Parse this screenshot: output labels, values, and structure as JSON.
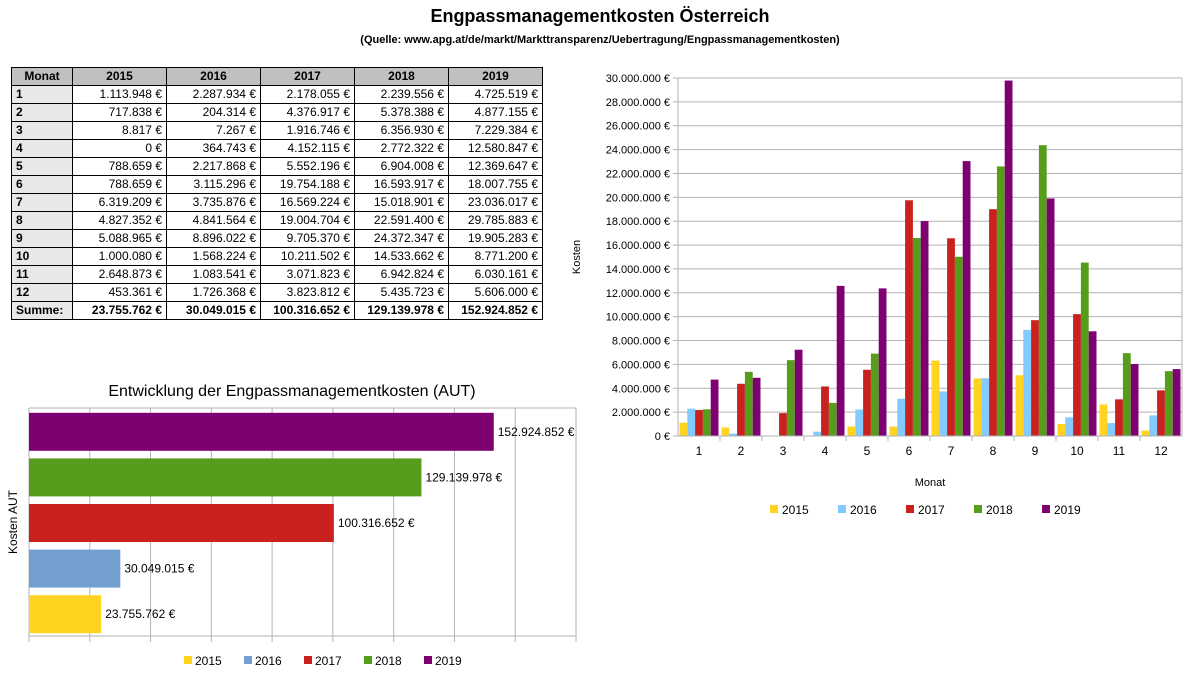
{
  "title": "Engpassmanagementkosten Österreich",
  "source": "(Quelle: www.apg.at/de/markt/Markttransparenz/Uebertragung/Engpassmanagementkosten)",
  "colors": {
    "2015": "#ffd320",
    "2016": "#83caff",
    "2017": "#c9211e",
    "2018": "#579d1c",
    "2019": "#7e0071"
  },
  "hbar_colors": [
    "#ffd320",
    "#729fcf",
    "#c9211e",
    "#579d1c",
    "#7e0071"
  ],
  "table": {
    "header": [
      "Monat",
      "2015",
      "2016",
      "2017",
      "2018",
      "2019"
    ],
    "rows": [
      [
        "1",
        "1.113.948 €",
        "2.287.934 €",
        "2.178.055 €",
        "2.239.556 €",
        "4.725.519 €"
      ],
      [
        "2",
        "717.838 €",
        "204.314 €",
        "4.376.917 €",
        "5.378.388 €",
        "4.877.155 €"
      ],
      [
        "3",
        "8.817 €",
        "7.267 €",
        "1.916.746 €",
        "6.356.930 €",
        "7.229.384 €"
      ],
      [
        "4",
        "0 €",
        "364.743 €",
        "4.152.115 €",
        "2.772.322 €",
        "12.580.847 €"
      ],
      [
        "5",
        "788.659 €",
        "2.217.868 €",
        "5.552.196 €",
        "6.904.008 €",
        "12.369.647 €"
      ],
      [
        "6",
        "788.659 €",
        "3.115.296 €",
        "19.754.188 €",
        "16.593.917 €",
        "18.007.755 €"
      ],
      [
        "7",
        "6.319.209 €",
        "3.735.876 €",
        "16.569.224 €",
        "15.018.901 €",
        "23.036.017 €"
      ],
      [
        "8",
        "4.827.352 €",
        "4.841.564 €",
        "19.004.704 €",
        "22.591.400 €",
        "29.785.883 €"
      ],
      [
        "9",
        "5.088.965 €",
        "8.896.022 €",
        "9.705.370 €",
        "24.372.347 €",
        "19.905.283 €"
      ],
      [
        "10",
        "1.000.080 €",
        "1.568.224 €",
        "10.211.502 €",
        "14.533.662 €",
        "8.771.200 €"
      ],
      [
        "11",
        "2.648.873 €",
        "1.083.541 €",
        "3.071.823 €",
        "6.942.824 €",
        "6.030.161 €"
      ],
      [
        "12",
        "453.361 €",
        "1.726.368 €",
        "3.823.812 €",
        "5.435.723 €",
        "5.606.000 €"
      ]
    ],
    "sum_row": [
      "Summe:",
      "23.755.762 €",
      "30.049.015 €",
      "100.316.652 €",
      "129.139.978 €",
      "152.924.852 €"
    ]
  },
  "chart_data": [
    {
      "type": "bar",
      "categories": [
        "1",
        "2",
        "3",
        "4",
        "5",
        "6",
        "7",
        "8",
        "9",
        "10",
        "11",
        "12"
      ],
      "series": [
        {
          "name": "2015",
          "values": [
            1113948,
            717838,
            8817,
            0,
            788659,
            788659,
            6319209,
            4827352,
            5088965,
            1000080,
            2648873,
            453361
          ]
        },
        {
          "name": "2016",
          "values": [
            2287934,
            204314,
            7267,
            364743,
            2217868,
            3115296,
            3735876,
            4841564,
            8896022,
            1568224,
            1083541,
            1726368
          ]
        },
        {
          "name": "2017",
          "values": [
            2178055,
            4376917,
            1916746,
            4152115,
            5552196,
            19754188,
            16569224,
            19004704,
            9705370,
            10211502,
            3071823,
            3823812
          ]
        },
        {
          "name": "2018",
          "values": [
            2239556,
            5378388,
            6356930,
            2772322,
            6904008,
            16593917,
            15018901,
            22591400,
            24372347,
            14533662,
            6942824,
            5435723
          ]
        },
        {
          "name": "2019",
          "values": [
            4725519,
            4877155,
            7229384,
            12580847,
            12369647,
            18007755,
            23036017,
            29785883,
            19905283,
            8771200,
            6030161,
            5606000
          ]
        }
      ],
      "xlabel": "Monat",
      "ylabel": "Kosten",
      "ylim": [
        0,
        30000000
      ],
      "ytick_step": 2000000,
      "yticks": [
        "0 €",
        "2.000.000 €",
        "4.000.000 €",
        "6.000.000 €",
        "8.000.000 €",
        "10.000.000 €",
        "12.000.000 €",
        "14.000.000 €",
        "16.000.000 €",
        "18.000.000 €",
        "20.000.000 €",
        "22.000.000 €",
        "24.000.000 €",
        "26.000.000 €",
        "28.000.000 €",
        "30.000.000 €"
      ],
      "grid": true,
      "legend": "bottom"
    },
    {
      "type": "bar",
      "orientation": "horizontal",
      "title": "Entwicklung der Engpassmanagementkosten (AUT)",
      "ylabel": "Kosten AUT",
      "series": [
        {
          "name": "2015",
          "value": 23755762,
          "label": "23.755.762 €"
        },
        {
          "name": "2016",
          "value": 30049015,
          "label": "30.049.015 €"
        },
        {
          "name": "2017",
          "value": 100316652,
          "label": "100.316.652 €"
        },
        {
          "name": "2018",
          "value": 129139978,
          "label": "129.139.978 €"
        },
        {
          "name": "2019",
          "value": 152924852,
          "label": "152.924.852 €"
        }
      ],
      "xlim": [
        0,
        180000000
      ],
      "x_gridline_step": 20000000,
      "grid": true,
      "legend": "bottom"
    }
  ]
}
